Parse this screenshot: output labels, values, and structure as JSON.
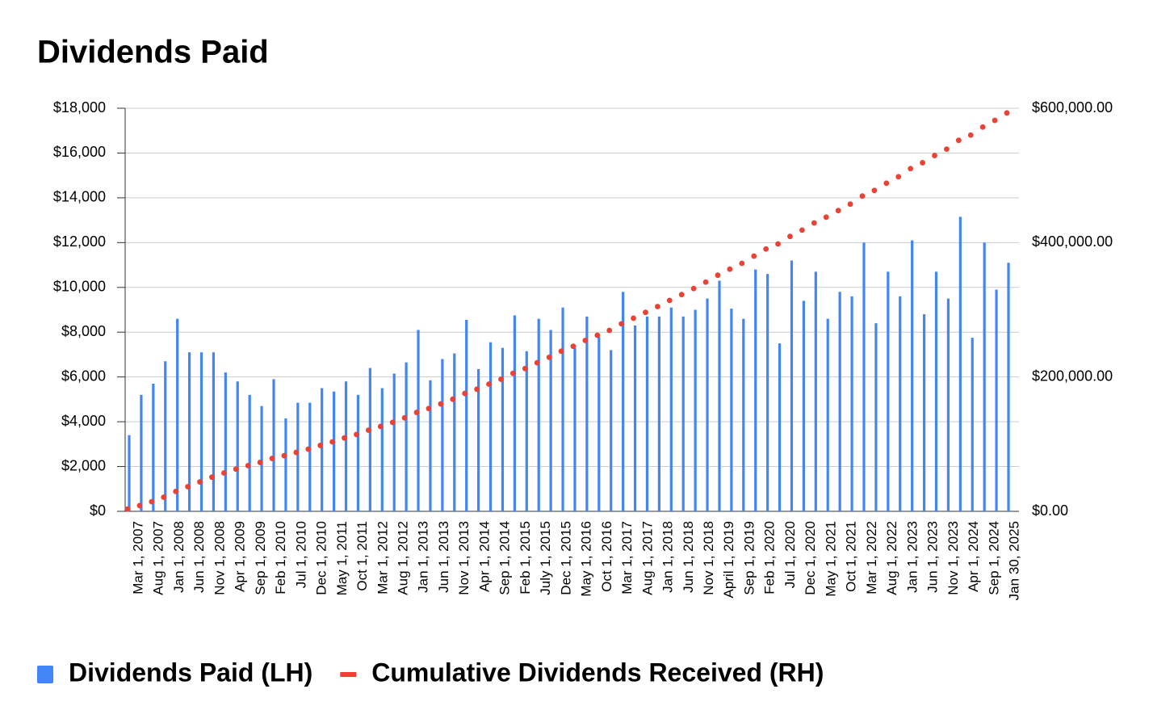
{
  "chart_data": {
    "type": "bar-line",
    "title": "Dividends Paid",
    "x_labels": [
      "Mar 1, 2007",
      "Aug 1, 2007",
      "Jan 1, 2008",
      "Jun 1, 2008",
      "Nov 1, 2008",
      "Apr 1, 2009",
      "Sep 1, 2009",
      "Feb 1, 2010",
      "Jul 1, 2010",
      "Dec 1, 2010",
      "May 1, 2011",
      "Oct 1, 2011",
      "Mar 1, 2012",
      "Aug 1, 2012",
      "Jan 1, 2013",
      "Jun 1, 2013",
      "Nov 1, 2013",
      "Apr 1, 2014",
      "Sep 1, 2014",
      "Feb 1, 2015",
      "July 1, 2015",
      "Dec 1, 2015",
      "May 1, 2016",
      "Oct 1, 2016",
      "Mar 1, 2017",
      "Aug 1, 2017",
      "Jan 1, 2018",
      "Jun 1, 2018",
      "Nov 1, 2018",
      "April 1, 2019",
      "Sep 1, 2019",
      "Feb 1, 2020",
      "Jul 1, 2020",
      "Dec 1, 2020",
      "May 1, 2021",
      "Oct 1, 2021",
      "Mar 1, 2022",
      "Aug 1, 2022",
      "Jan 1, 2023",
      "Jun 1, 2023",
      "Nov 1, 2023",
      "Apr 1, 2024",
      "Sep 1, 2024",
      "Jan 30, 2025"
    ],
    "series": [
      {
        "name": "Dividends Paid (LH)",
        "type": "bar",
        "color": "#4285f4",
        "values": [
          3400,
          5200,
          5700,
          6700,
          8600,
          7100,
          7100,
          7100,
          6200,
          5800,
          5200,
          4700,
          5900,
          4150,
          4850,
          4850,
          5500,
          5350,
          5800,
          5200,
          6400,
          5500,
          6150,
          6650,
          8100,
          5850,
          6800,
          7050,
          8550,
          6350,
          7550,
          7300,
          8750,
          7150,
          8600,
          8100,
          9100,
          7300,
          8700,
          7800,
          7200,
          9800,
          8300,
          8700,
          8700,
          9100,
          8700,
          9000,
          9500,
          10300,
          9050,
          8600,
          10800,
          10600,
          7500,
          11200,
          9400,
          10700,
          8600,
          9800,
          9600,
          12000,
          8400,
          10700,
          9600,
          12100,
          8800,
          10700,
          9500,
          13150,
          7750,
          12000,
          9900,
          11100
        ]
      },
      {
        "name": "Cumulative Dividends Received (RH)",
        "type": "dots",
        "axis": "y2",
        "color": "#ea4335",
        "values": [
          3400,
          8600,
          14300,
          21000,
          29600,
          36700,
          43800,
          50900,
          57100,
          62900,
          68100,
          72800,
          78700,
          82850,
          87700,
          92550,
          98050,
          103400,
          109200,
          114400,
          120800,
          126300,
          132450,
          139100,
          147200,
          153050,
          159850,
          166900,
          175450,
          181800,
          189350,
          196650,
          205400,
          212550,
          221150,
          229250,
          238350,
          245650,
          254350,
          262150,
          269350,
          279150,
          287450,
          296150,
          304850,
          313950,
          322650,
          331650,
          341150,
          351450,
          360500,
          369100,
          379900,
          390500,
          398000,
          409200,
          418600,
          429300,
          437900,
          447700,
          457300,
          469300,
          477700,
          488400,
          498000,
          510100,
          518900,
          529600,
          539100,
          552250,
          560000,
          572000,
          581900,
          593000
        ]
      }
    ],
    "ylim": [
      0,
      18000
    ],
    "yticks": [
      {
        "value": 0,
        "label": "$0"
      },
      {
        "value": 2000,
        "label": "$2,000"
      },
      {
        "value": 4000,
        "label": "$4,000"
      },
      {
        "value": 6000,
        "label": "$6,000"
      },
      {
        "value": 8000,
        "label": "$8,000"
      },
      {
        "value": 10000,
        "label": "$10,000"
      },
      {
        "value": 12000,
        "label": "$12,000"
      },
      {
        "value": 14000,
        "label": "$14,000"
      },
      {
        "value": 16000,
        "label": "$16,000"
      },
      {
        "value": 18000,
        "label": "$18,000"
      }
    ],
    "y2lim": [
      0,
      600000
    ],
    "y2ticks": [
      {
        "value": 0,
        "label": "$0.00"
      },
      {
        "value": 200000,
        "label": "$200,000.00"
      },
      {
        "value": 400000,
        "label": "$400,000.00"
      },
      {
        "value": 600000,
        "label": "$600,000.00"
      }
    ],
    "grid": true,
    "legend": "bottom"
  }
}
